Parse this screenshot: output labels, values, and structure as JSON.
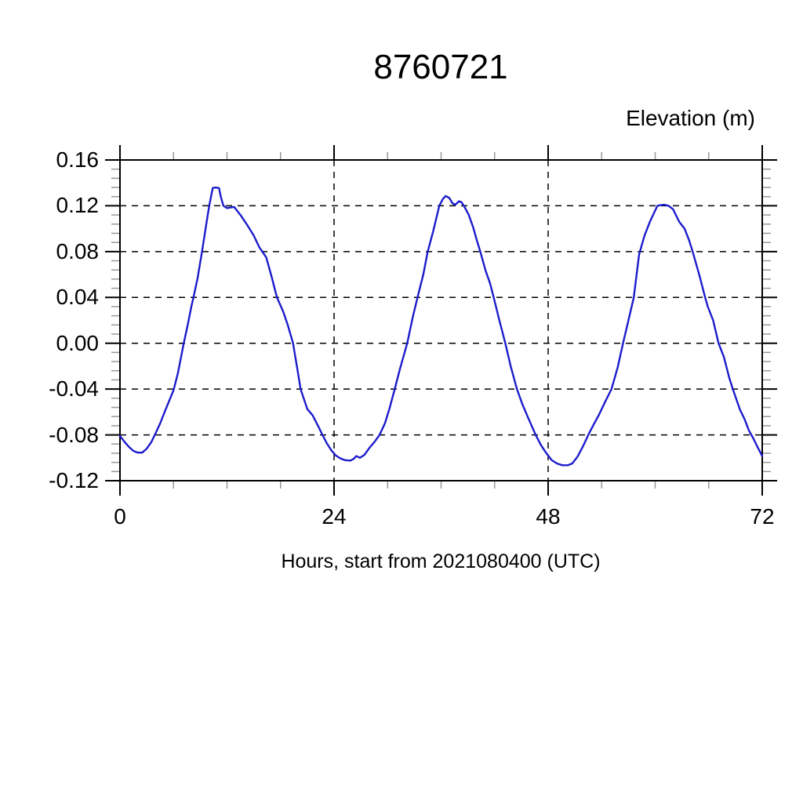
{
  "title": "8760721",
  "right_axis_label": "Elevation (m)",
  "x_axis_label": "Hours, start from 2021080400 (UTC)",
  "colors": {
    "line": "#1c1ccc",
    "frame": "#000000",
    "grid": "#000000",
    "major_tick": "#000000",
    "minor_tick": "#999999",
    "text": "#000000",
    "background": "#ffffff"
  },
  "chart_data": {
    "type": "line",
    "title": "8760721",
    "ylabel": "Elevation (m)",
    "xlabel": "Hours, start from 2021080400 (UTC)",
    "xlim": [
      0,
      72
    ],
    "ylim": [
      -0.12,
      0.16
    ],
    "x_major_ticks": [
      0,
      24,
      48,
      72
    ],
    "x_tick_labels": [
      "0",
      "24",
      "48",
      "72"
    ],
    "x_minor_interval": 6,
    "y_major_ticks": [
      0.16,
      0.12,
      0.08,
      0.04,
      0.0,
      -0.04,
      -0.08,
      -0.12
    ],
    "y_tick_labels": [
      "0.16",
      "0.12",
      "0.08",
      "0.04",
      "0.00",
      "-0.04",
      "-0.08",
      "-0.12"
    ],
    "y_minor_interval": 0.008,
    "grid": {
      "show": true,
      "style": "dashed",
      "at": "major_ticks"
    },
    "legend": "none",
    "series": [
      {
        "name": "Elevation",
        "units": "m",
        "points": [
          [
            0,
            -0.081
          ],
          [
            0.5,
            -0.086
          ],
          [
            1,
            -0.0905
          ],
          [
            1.5,
            -0.094
          ],
          [
            2,
            -0.0955
          ],
          [
            2.5,
            -0.0955
          ],
          [
            3,
            -0.092
          ],
          [
            3.5,
            -0.0865
          ],
          [
            3.9,
            -0.08
          ],
          [
            4.5,
            -0.07
          ],
          [
            5,
            -0.06
          ],
          [
            5.5,
            -0.0505
          ],
          [
            6,
            -0.041
          ],
          [
            6.5,
            -0.026
          ],
          [
            7,
            -0.006
          ],
          [
            7.15,
            0
          ],
          [
            7.6,
            0.016
          ],
          [
            8,
            0.032
          ],
          [
            8.24,
            0.04
          ],
          [
            8.7,
            0.057
          ],
          [
            9.2,
            0.08
          ],
          [
            9.7,
            0.105
          ],
          [
            10,
            0.12
          ],
          [
            10.4,
            0.1355
          ],
          [
            10.7,
            0.136
          ],
          [
            11.1,
            0.1355
          ],
          [
            11.3,
            0.128
          ],
          [
            11.6,
            0.12
          ],
          [
            12,
            0.118
          ],
          [
            12.4,
            0.1185
          ],
          [
            12.8,
            0.119
          ],
          [
            13.2,
            0.115
          ],
          [
            13.5,
            0.112
          ],
          [
            14.2,
            0.104
          ],
          [
            15,
            0.094
          ],
          [
            15.6,
            0.084
          ],
          [
            16,
            0.0795
          ],
          [
            16.4,
            0.075
          ],
          [
            17,
            0.058
          ],
          [
            17.6,
            0.04
          ],
          [
            18.3,
            0.0275
          ],
          [
            18.8,
            0.016
          ],
          [
            19.4,
            0
          ],
          [
            20,
            -0.028
          ],
          [
            20.25,
            -0.04
          ],
          [
            21,
            -0.0575
          ],
          [
            21.6,
            -0.063
          ],
          [
            22.2,
            -0.072
          ],
          [
            22.7,
            -0.08
          ],
          [
            23.2,
            -0.0875
          ],
          [
            23.7,
            -0.0935
          ],
          [
            24.2,
            -0.098
          ],
          [
            24.7,
            -0.1005
          ],
          [
            25.2,
            -0.102
          ],
          [
            25.8,
            -0.1025
          ],
          [
            26.2,
            -0.101
          ],
          [
            26.5,
            -0.0985
          ],
          [
            26.9,
            -0.1
          ],
          [
            27.4,
            -0.0975
          ],
          [
            28,
            -0.091
          ],
          [
            28.6,
            -0.0855
          ],
          [
            29.1,
            -0.08
          ],
          [
            29.7,
            -0.07
          ],
          [
            30.2,
            -0.0575
          ],
          [
            30.8,
            -0.04
          ],
          [
            31.4,
            -0.022
          ],
          [
            32.2,
            0
          ],
          [
            32.8,
            0.022
          ],
          [
            33.35,
            0.04
          ],
          [
            34,
            0.06
          ],
          [
            34.5,
            0.08
          ],
          [
            35.1,
            0.0975
          ],
          [
            35.8,
            0.12
          ],
          [
            36.2,
            0.126
          ],
          [
            36.5,
            0.1285
          ],
          [
            36.9,
            0.127
          ],
          [
            37.3,
            0.122
          ],
          [
            37.6,
            0.121
          ],
          [
            38,
            0.124
          ],
          [
            38.3,
            0.123
          ],
          [
            38.7,
            0.118
          ],
          [
            39.1,
            0.112
          ],
          [
            39.6,
            0.101
          ],
          [
            40,
            0.09
          ],
          [
            40.4,
            0.08
          ],
          [
            41,
            0.063
          ],
          [
            41.5,
            0.052
          ],
          [
            41.9,
            0.04
          ],
          [
            42.5,
            0.021
          ],
          [
            43.2,
            0
          ],
          [
            43.8,
            -0.02
          ],
          [
            44.5,
            -0.04
          ],
          [
            45.1,
            -0.053
          ],
          [
            45.7,
            -0.064
          ],
          [
            46.6,
            -0.08
          ],
          [
            47.2,
            -0.089
          ],
          [
            47.8,
            -0.096
          ],
          [
            48.4,
            -0.102
          ],
          [
            49,
            -0.105
          ],
          [
            49.6,
            -0.1065
          ],
          [
            50.2,
            -0.1065
          ],
          [
            50.7,
            -0.105
          ],
          [
            51.3,
            -0.099
          ],
          [
            51.9,
            -0.09
          ],
          [
            52.5,
            -0.08
          ],
          [
            53.1,
            -0.071
          ],
          [
            53.7,
            -0.0625
          ],
          [
            54.4,
            -0.051
          ],
          [
            55.1,
            -0.04
          ],
          [
            55.8,
            -0.021
          ],
          [
            56.4,
            0
          ],
          [
            57,
            0.02
          ],
          [
            57.6,
            0.04
          ],
          [
            58.2,
            0.0775
          ],
          [
            58.8,
            0.094
          ],
          [
            59.4,
            0.106
          ],
          [
            60.25,
            0.12
          ],
          [
            60.6,
            0.1205
          ],
          [
            61,
            0.121
          ],
          [
            61.5,
            0.12
          ],
          [
            62,
            0.117
          ],
          [
            62.7,
            0.106
          ],
          [
            63.3,
            0.1
          ],
          [
            63.8,
            0.09
          ],
          [
            64.2,
            0.08
          ],
          [
            65,
            0.058
          ],
          [
            65.6,
            0.04
          ],
          [
            65.9,
            0.032
          ],
          [
            66.5,
            0.02
          ],
          [
            67.1,
            0
          ],
          [
            67.7,
            -0.012
          ],
          [
            68.3,
            -0.03
          ],
          [
            68.7,
            -0.04
          ],
          [
            69.5,
            -0.058
          ],
          [
            70,
            -0.066
          ],
          [
            70.5,
            -0.076
          ],
          [
            71,
            -0.083
          ],
          [
            71.5,
            -0.091
          ],
          [
            72,
            -0.0985
          ]
        ]
      }
    ]
  }
}
